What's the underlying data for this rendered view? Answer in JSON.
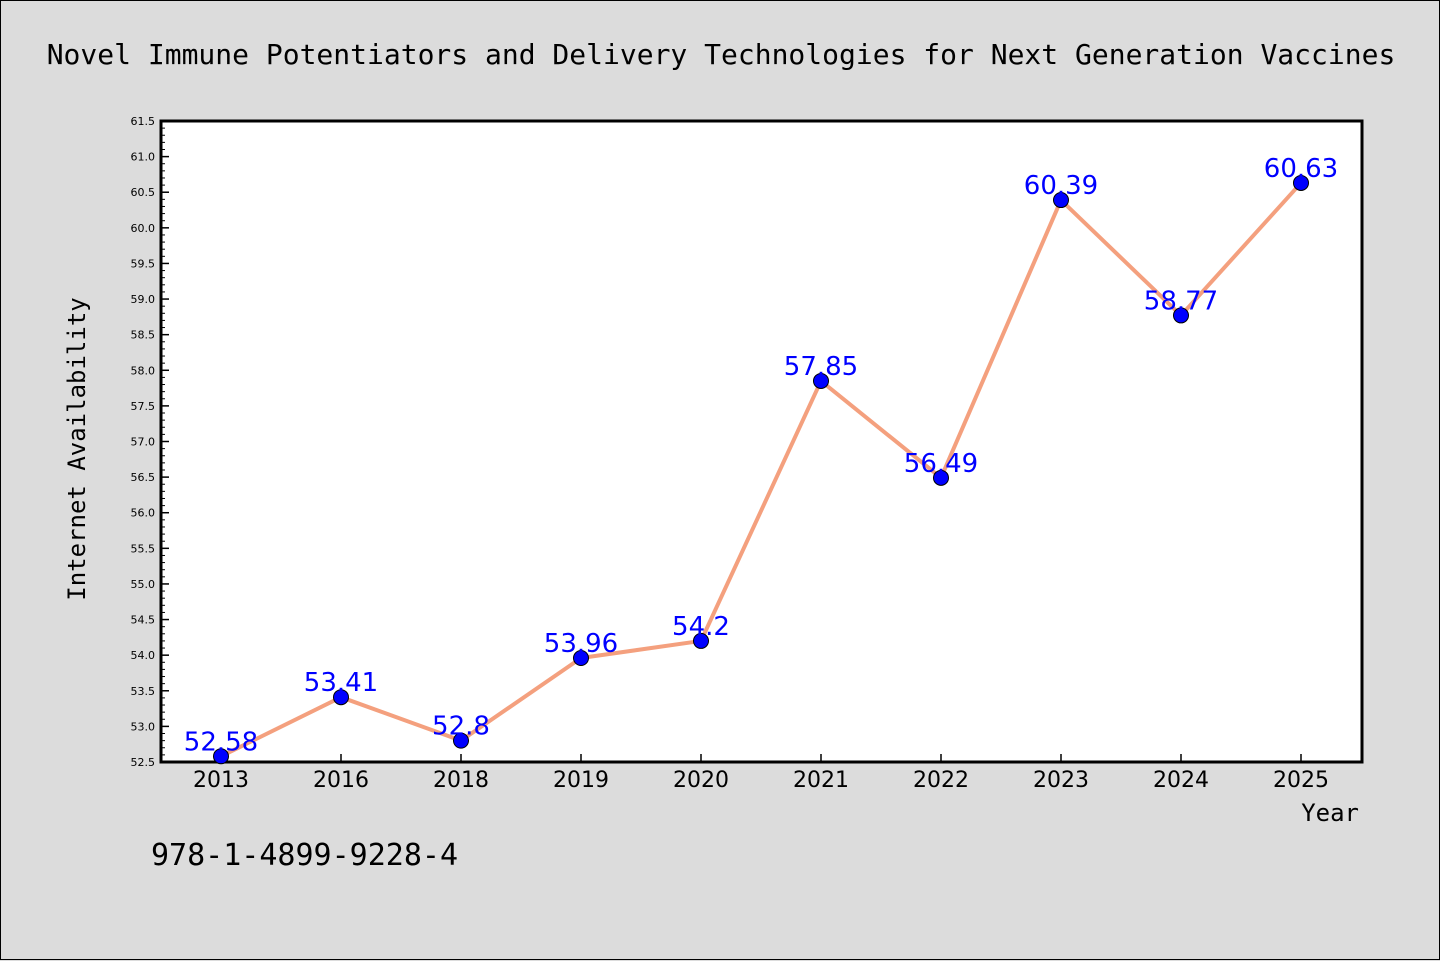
{
  "chart_data": {
    "type": "line",
    "title": "Novel Immune Potentiators and Delivery Technologies for Next Generation Vaccines",
    "xlabel": "Year",
    "ylabel": "Internet Availability",
    "categories": [
      "2013",
      "2016",
      "2018",
      "2019",
      "2020",
      "2021",
      "2022",
      "2023",
      "2024",
      "2025"
    ],
    "series": [
      {
        "values": [
          52.58,
          53.41,
          52.8,
          53.96,
          54.2,
          57.85,
          56.49,
          60.39,
          58.77,
          60.63
        ],
        "labels": [
          "52.58",
          "53.41",
          "52.8",
          "53.96",
          "54.2",
          "57.85",
          "56.49",
          "60.39",
          "58.77",
          "60.63"
        ]
      }
    ],
    "ylim": [
      52.5,
      61.5
    ],
    "yticks": [
      "52.5",
      "53.0",
      "53.5",
      "54.0",
      "54.5",
      "55.0",
      "55.5",
      "56.0",
      "56.5",
      "57.0",
      "57.5",
      "58.0",
      "58.5",
      "59.0",
      "59.5",
      "60.0",
      "60.5",
      "61.0",
      "61.5"
    ],
    "grid": false,
    "legend": "none",
    "line_color": "#f4a07e",
    "marker_color": "#0000ff",
    "label_color": "#0000ff"
  },
  "footer": {
    "isbn": "978-1-4899-9228-4"
  }
}
